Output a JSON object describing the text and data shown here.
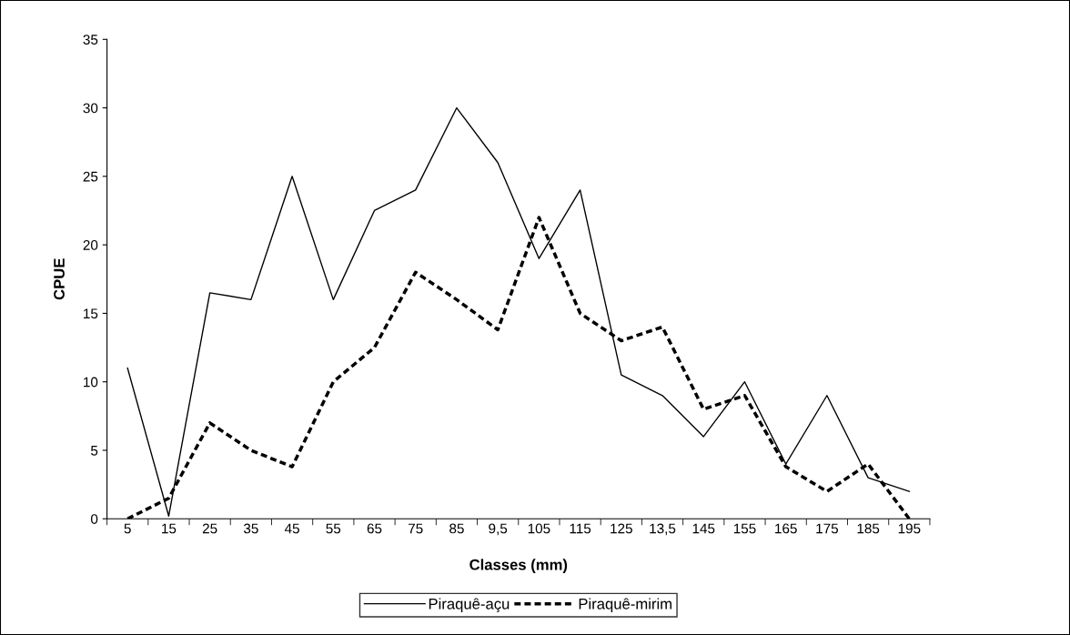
{
  "chart_data": {
    "type": "line",
    "xlabel": "Classes (mm)",
    "ylabel": "CPUE",
    "categories": [
      "5",
      "15",
      "25",
      "35",
      "45",
      "55",
      "65",
      "75",
      "85",
      "9,5",
      "105",
      "115",
      "125",
      "13,5",
      "145",
      "155",
      "165",
      "175",
      "185",
      "195"
    ],
    "series": [
      {
        "name": "Piraquê-açu",
        "color": "#000000",
        "line_style": "solid",
        "values": [
          11,
          0.2,
          16.5,
          16,
          25,
          16,
          22.5,
          24,
          30,
          26,
          19,
          24,
          10.5,
          9,
          6,
          10,
          4,
          9,
          3,
          2
        ]
      },
      {
        "name": "Piraquê-mirim",
        "color": "#000000",
        "line_style": "dashed",
        "values": [
          0,
          1.5,
          7,
          5,
          3.8,
          10,
          12.5,
          18,
          16,
          13.8,
          22,
          15,
          13,
          14,
          8,
          9,
          3.8,
          2,
          4,
          0
        ]
      }
    ],
    "ylim": [
      0,
      35
    ],
    "yticks": [
      0,
      5,
      10,
      15,
      20,
      25,
      30,
      35
    ],
    "grid": false,
    "legend": "bottom",
    "marker": "none"
  }
}
